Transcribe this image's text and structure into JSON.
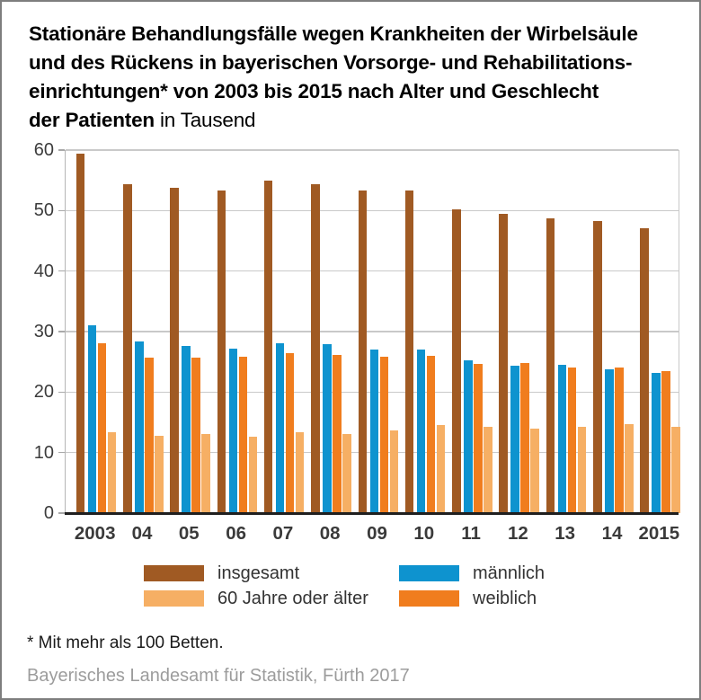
{
  "title": {
    "bold_lines": [
      "Stationäre Behandlungsfälle wegen Krankheiten der Wirbelsäule",
      "und des Rückens in bayerischen Vorsorge- und Rehabilitations-",
      "einrichtungen* von 2003 bis 2015 nach Alter und Geschlecht",
      "der Patienten"
    ],
    "suffix": "in Tausend"
  },
  "chart_data": {
    "type": "bar",
    "title": "Stationäre Behandlungsfälle wegen Krankheiten der Wirbelsäule und des Rückens in bayerischen Vorsorge- und Rehabilitationseinrichtungen* von 2003 bis 2015 nach Alter und Geschlecht der Patienten",
    "unit_label": "in Tausend",
    "categories": [
      "2003",
      "04",
      "05",
      "06",
      "07",
      "08",
      "09",
      "10",
      "11",
      "12",
      "13",
      "14",
      "2015"
    ],
    "series": [
      {
        "name": "insgesamt",
        "color": "#A05A23",
        "values": [
          59.4,
          54.4,
          53.7,
          53.3,
          54.9,
          54.4,
          53.3,
          53.3,
          50.2,
          49.4,
          48.7,
          48.2,
          47.1
        ]
      },
      {
        "name": "männlich",
        "color": "#0E93CF",
        "values": [
          31.0,
          28.3,
          27.6,
          27.2,
          28.0,
          27.9,
          27.1,
          27.0,
          25.3,
          24.3,
          24.5,
          23.7,
          23.2
        ]
      },
      {
        "name": "weiblich",
        "color": "#F07D1E",
        "values": [
          28.0,
          25.7,
          25.7,
          25.8,
          26.5,
          26.1,
          25.8,
          26.0,
          24.7,
          24.8,
          24.0,
          24.1,
          23.5
        ]
      },
      {
        "name": "60 Jahre oder älter",
        "color": "#F6AF64",
        "values": [
          13.3,
          12.8,
          13.1,
          12.6,
          13.3,
          13.0,
          13.7,
          14.6,
          14.2,
          14.0,
          14.3,
          14.7,
          14.3
        ]
      }
    ],
    "ylim": [
      0,
      60
    ],
    "yticks": [
      0,
      10,
      20,
      30,
      40,
      50,
      60
    ],
    "xlabel": "",
    "ylabel": "",
    "grid": true,
    "legend_position": "bottom"
  },
  "legend": {
    "items": [
      {
        "label": "insgesamt",
        "color": "#A05A23"
      },
      {
        "label": "männlich",
        "color": "#0E93CF"
      },
      {
        "label": "60 Jahre oder älter",
        "color": "#F6AF64"
      },
      {
        "label": "weiblich",
        "color": "#F07D1E"
      }
    ]
  },
  "footnote": "* Mit mehr als 100 Betten.",
  "source": "Bayerisches Landesamt für Statistik, Fürth 2017"
}
